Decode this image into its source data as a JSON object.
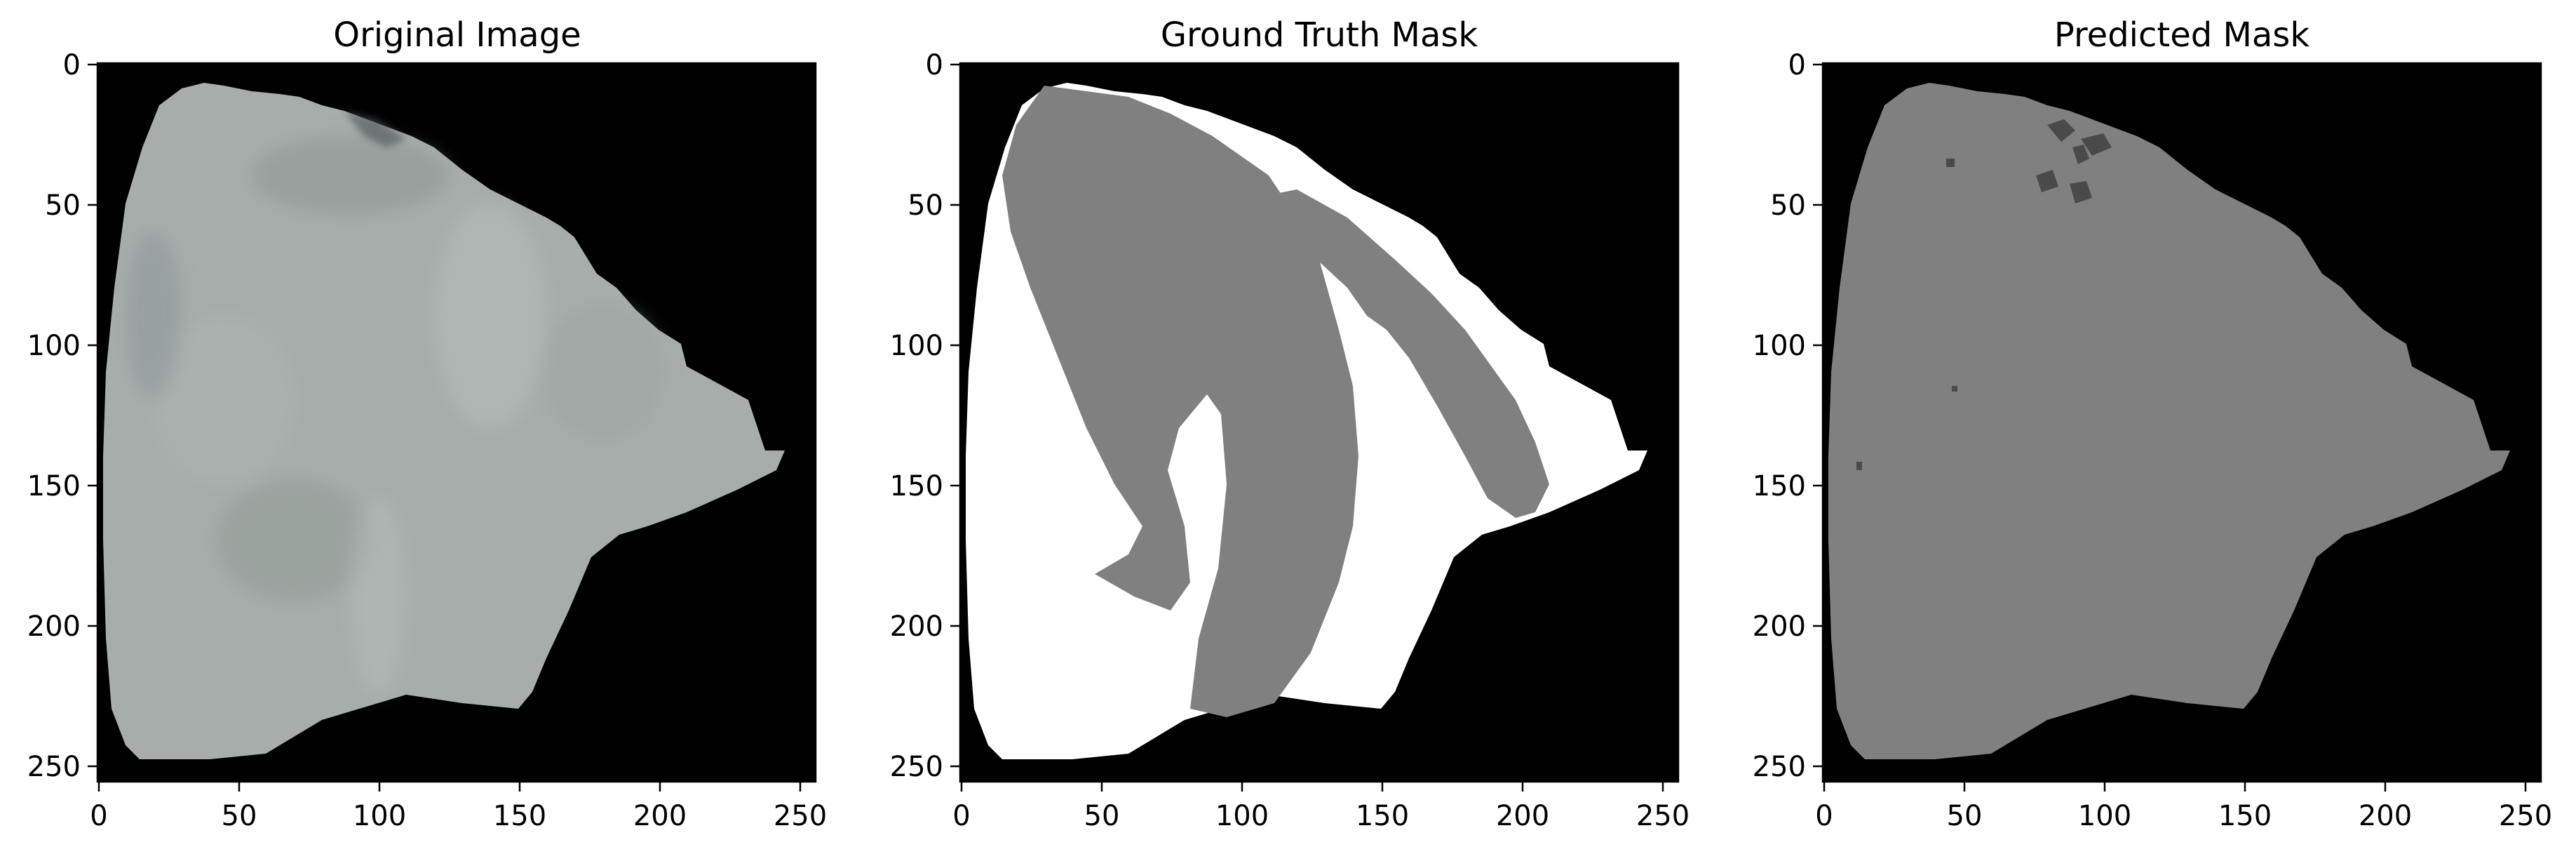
{
  "figure": {
    "panels": [
      {
        "key": "original",
        "title": "Original Image",
        "x_ticks": [
          "0",
          "50",
          "100",
          "150",
          "200",
          "250"
        ],
        "y_ticks": [
          "0",
          "50",
          "100",
          "150",
          "200",
          "250"
        ],
        "colors": {
          "background": "#000000",
          "tissue": "#a6adaa",
          "tissue_shadow": "#8f9692",
          "tissue_highlight": "#b9bfbc"
        }
      },
      {
        "key": "ground_truth",
        "title": "Ground Truth Mask",
        "x_ticks": [
          "0",
          "50",
          "100",
          "150",
          "200",
          "250"
        ],
        "y_ticks": [
          "0",
          "50",
          "100",
          "150",
          "200",
          "250"
        ],
        "colors": {
          "background": "#000000",
          "class_1": "#ffffff",
          "class_2": "#808080"
        }
      },
      {
        "key": "predicted",
        "title": "Predicted Mask",
        "x_ticks": [
          "0",
          "50",
          "100",
          "150",
          "200",
          "250"
        ],
        "y_ticks": [
          "0",
          "50",
          "100",
          "150",
          "200",
          "250"
        ],
        "colors": {
          "background": "#000000",
          "class_2": "#808080",
          "artifact": "#4a4a4a"
        }
      }
    ]
  }
}
